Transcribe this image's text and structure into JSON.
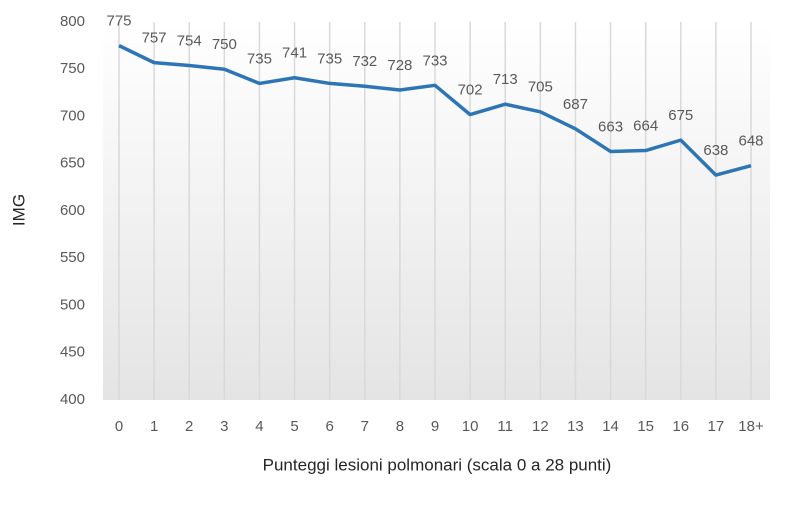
{
  "chart_data": {
    "type": "line",
    "x_label": "Punteggi lesioni polmonari (scala 0 a 28 punti)",
    "y_label": "IMG",
    "categories": [
      "0",
      "1",
      "2",
      "3",
      "4",
      "5",
      "6",
      "7",
      "8",
      "9",
      "10",
      "11",
      "12",
      "13",
      "14",
      "15",
      "16",
      "17",
      "18+"
    ],
    "values": [
      775,
      757,
      754,
      750,
      735,
      741,
      735,
      732,
      728,
      733,
      702,
      713,
      705,
      687,
      663,
      664,
      675,
      638,
      648
    ],
    "color": "#2e75b6",
    "ylim": [
      400,
      800
    ],
    "yticks": [
      400,
      450,
      500,
      550,
      600,
      650,
      700,
      750,
      800
    ],
    "grid": "x"
  }
}
